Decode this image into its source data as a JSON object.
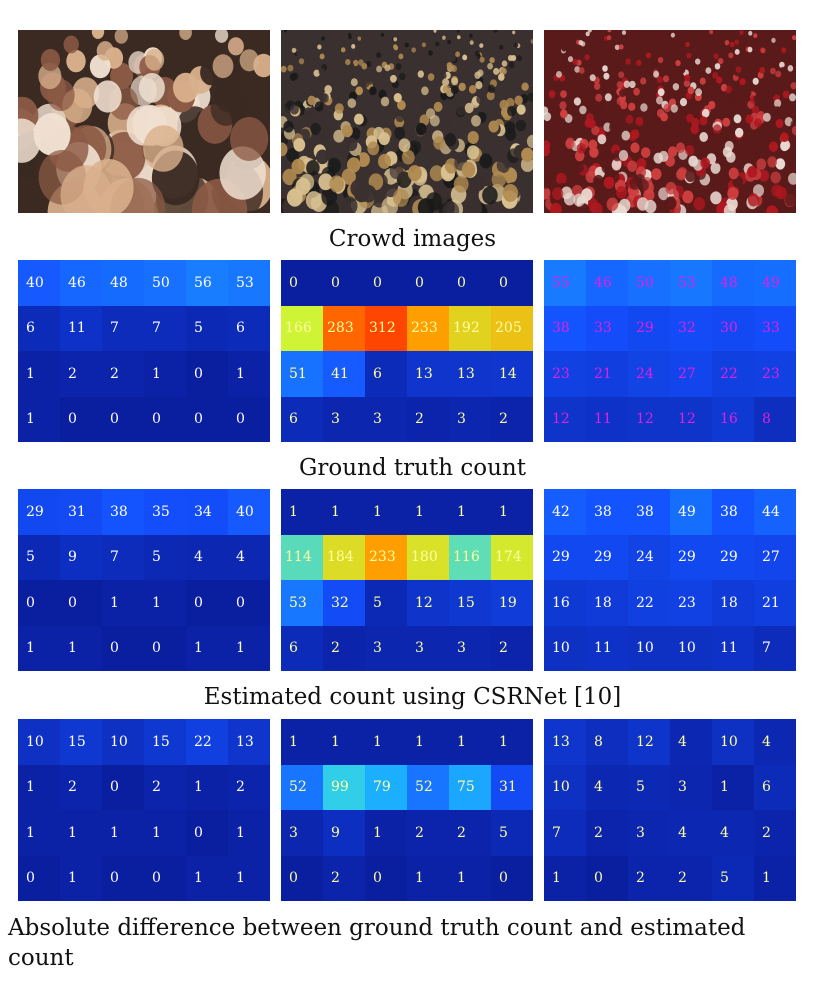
{
  "captions": {
    "crowd": "Crowd images",
    "ground_truth": "Ground truth count",
    "estimated": "Estimated count using CSRNet [10]",
    "difference": "Absolute difference between ground truth count and estimated count"
  },
  "photos": [
    {
      "name": "street-crowd-photo",
      "palette": [
        "#8c5a45",
        "#d9b08c",
        "#3a2a22",
        "#f0e0d0"
      ]
    },
    {
      "name": "arena-crowd-photo",
      "palette": [
        "#1a1a1a",
        "#b08a50",
        "#3a3030",
        "#d8c090"
      ]
    },
    {
      "name": "stadium-red-crowd-photo",
      "palette": [
        "#b01820",
        "#e8d8d0",
        "#5a1a1a",
        "#d04040"
      ]
    }
  ],
  "grids": {
    "ground_truth": [
      {
        "text_color": "#ffffff",
        "values": [
          [
            40,
            46,
            48,
            50,
            56,
            53
          ],
          [
            6,
            11,
            7,
            7,
            5,
            6
          ],
          [
            1,
            2,
            2,
            1,
            0,
            1
          ],
          [
            1,
            0,
            0,
            0,
            0,
            0
          ]
        ]
      },
      {
        "text_color": "#ffffa0",
        "values": [
          [
            0,
            0,
            0,
            0,
            0,
            0
          ],
          [
            166,
            283,
            312,
            233,
            192,
            205
          ],
          [
            51,
            41,
            6,
            13,
            13,
            14
          ],
          [
            6,
            3,
            3,
            2,
            3,
            2
          ]
        ]
      },
      {
        "text_color": "#e020e0",
        "values": [
          [
            55,
            46,
            50,
            53,
            48,
            49
          ],
          [
            38,
            33,
            29,
            32,
            30,
            33
          ],
          [
            23,
            21,
            24,
            27,
            22,
            23
          ],
          [
            12,
            11,
            12,
            12,
            16,
            8
          ]
        ]
      }
    ],
    "estimated": [
      {
        "text_color": "#ffffff",
        "values": [
          [
            29,
            31,
            38,
            35,
            34,
            40
          ],
          [
            5,
            9,
            7,
            5,
            4,
            4
          ],
          [
            0,
            0,
            1,
            1,
            0,
            0
          ],
          [
            1,
            1,
            0,
            0,
            1,
            1
          ]
        ]
      },
      {
        "text_color": "#ffffa0",
        "values": [
          [
            1,
            1,
            1,
            1,
            1,
            1
          ],
          [
            114,
            184,
            233,
            180,
            116,
            174
          ],
          [
            53,
            32,
            5,
            12,
            15,
            19
          ],
          [
            6,
            2,
            3,
            3,
            3,
            2
          ]
        ]
      },
      {
        "text_color": "#ffffff",
        "values": [
          [
            42,
            38,
            38,
            49,
            38,
            44
          ],
          [
            29,
            29,
            24,
            29,
            29,
            27
          ],
          [
            16,
            18,
            22,
            23,
            18,
            21
          ],
          [
            10,
            11,
            10,
            10,
            11,
            7
          ]
        ]
      }
    ],
    "difference": [
      {
        "text_color": "#ffffff",
        "values": [
          [
            10,
            15,
            10,
            15,
            22,
            13
          ],
          [
            1,
            2,
            0,
            2,
            1,
            2
          ],
          [
            1,
            1,
            1,
            1,
            0,
            1
          ],
          [
            0,
            1,
            0,
            0,
            1,
            1
          ]
        ]
      },
      {
        "text_color": "#ffffa0",
        "values": [
          [
            1,
            1,
            1,
            1,
            1,
            1
          ],
          [
            52,
            99,
            79,
            52,
            75,
            31
          ],
          [
            3,
            9,
            1,
            2,
            2,
            5
          ],
          [
            0,
            2,
            0,
            1,
            1,
            0
          ]
        ]
      },
      {
        "text_color": "#ffffa0",
        "values": [
          [
            13,
            8,
            12,
            4,
            10,
            4
          ],
          [
            10,
            4,
            5,
            3,
            1,
            6
          ],
          [
            7,
            2,
            3,
            4,
            4,
            2
          ],
          [
            1,
            0,
            2,
            2,
            5,
            1
          ]
        ]
      }
    ]
  },
  "colormap": {
    "max_value": 312,
    "stops": [
      "#0a1ea0",
      "#1450ff",
      "#1ec8ff",
      "#c8ff3c",
      "#ffa000",
      "#ff4600"
    ]
  }
}
